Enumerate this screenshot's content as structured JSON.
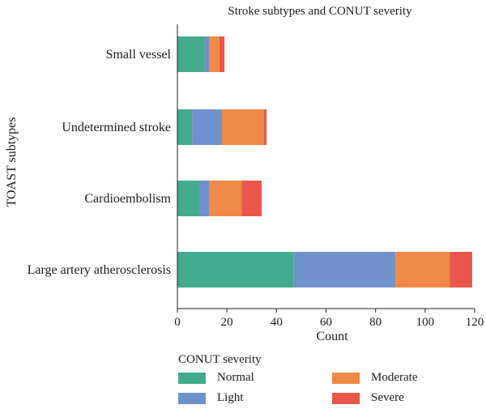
{
  "chart_data": {
    "type": "bar",
    "orientation": "horizontal",
    "stacked": true,
    "title": "Stroke subtypes and CONUT severity",
    "xlabel": "Count",
    "ylabel": "TOAST subtypes",
    "xlim": [
      0,
      120
    ],
    "xticks": [
      0,
      20,
      40,
      60,
      80,
      100,
      120
    ],
    "grid": false,
    "legend_placement": "bottom",
    "legend_title": "CONUT severity",
    "categories": [
      "Small vessel",
      "Undetermined stroke",
      "Cardioembolism",
      "Large artery atherosclerosis"
    ],
    "series": [
      {
        "name": "Normal",
        "color": "#45ab8e",
        "values": [
          11,
          6,
          9,
          47
        ]
      },
      {
        "name": "Light",
        "color": "#7191cb",
        "values": [
          2,
          12,
          4,
          41
        ]
      },
      {
        "name": "Moderate",
        "color": "#f08945",
        "values": [
          4,
          17,
          13,
          22
        ]
      },
      {
        "name": "Severe",
        "color": "#e8574a",
        "values": [
          2,
          1,
          8,
          9
        ]
      }
    ]
  }
}
